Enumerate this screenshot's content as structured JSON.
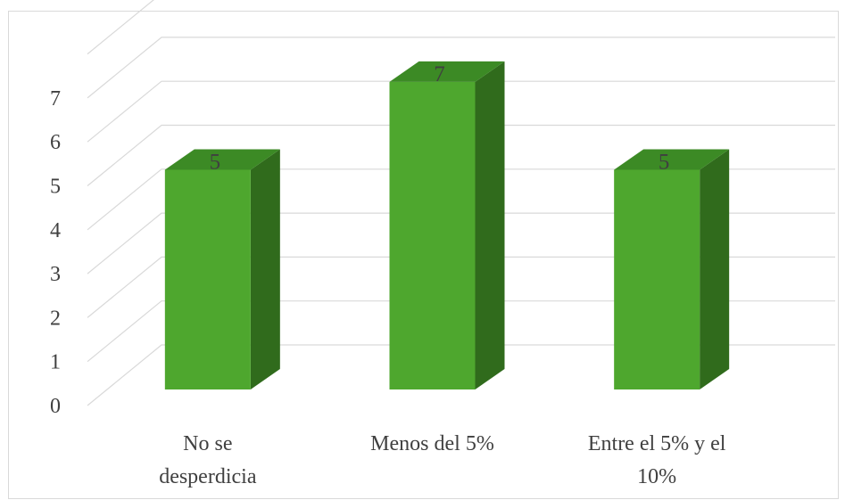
{
  "chart_data": {
    "type": "bar",
    "style": "3d-column",
    "title": "",
    "xlabel": "",
    "ylabel": "",
    "categories": [
      [
        "No se",
        "desperdicia"
      ],
      [
        "Menos del 5%"
      ],
      [
        "Entre el 5% y el",
        "10%"
      ]
    ],
    "values": [
      5,
      7,
      5
    ],
    "data_labels": [
      "5",
      "7",
      "5"
    ],
    "ylim": [
      0,
      7
    ],
    "yticks": [
      "0",
      "1",
      "2",
      "3",
      "4",
      "5",
      "6",
      "7"
    ],
    "grid": true,
    "legend": "none",
    "colors": {
      "bar_front": "#4ea72e",
      "bar_top": "#3c8a25",
      "bar_side": "#306b1c",
      "gridline": "#d9d9d9",
      "text": "#404040"
    }
  }
}
